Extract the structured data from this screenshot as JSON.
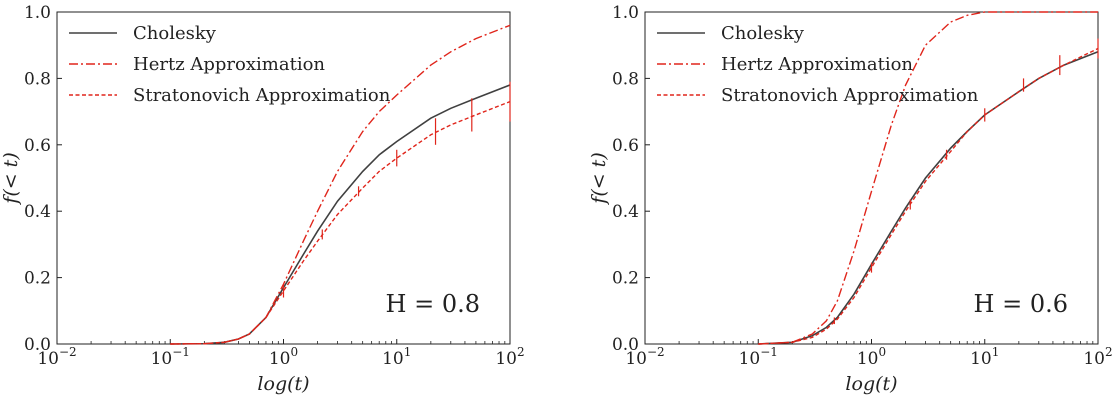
{
  "colors": {
    "cholesky": "#404040",
    "hertz": "#e0251b",
    "stratonovich": "#e0251b",
    "errorbar": "#e0251b",
    "axis": "#222222"
  },
  "chart_data": [
    {
      "type": "line",
      "xscale": "log",
      "xlim": [
        0.01,
        100
      ],
      "ylim": [
        0,
        1
      ],
      "xlabel": "log(t)",
      "ylabel": "f(< t)",
      "xticks": [
        "10^-2",
        "10^-1",
        "10^0",
        "10^1",
        "10^2"
      ],
      "yticks": [
        "0.0",
        "0.2",
        "0.4",
        "0.6",
        "0.8",
        "1.0"
      ],
      "annotation": "H = 0.8",
      "legend_position": "top-left",
      "series": [
        {
          "name": "Cholesky",
          "style": "solid",
          "x": [
            0.1,
            0.2,
            0.3,
            0.4,
            0.5,
            0.7,
            1.0,
            1.5,
            2,
            3,
            5,
            7,
            10,
            20,
            30,
            50,
            100
          ],
          "y": [
            0.0,
            0.001,
            0.005,
            0.015,
            0.03,
            0.08,
            0.17,
            0.27,
            0.34,
            0.43,
            0.52,
            0.57,
            0.61,
            0.68,
            0.71,
            0.74,
            0.78
          ]
        },
        {
          "name": "Hertz Approximation",
          "style": "dashdot",
          "x": [
            0.1,
            0.2,
            0.3,
            0.4,
            0.5,
            0.7,
            1.0,
            1.5,
            2,
            3,
            5,
            7,
            10,
            20,
            30,
            50,
            100
          ],
          "y": [
            0.0,
            0.001,
            0.005,
            0.015,
            0.03,
            0.08,
            0.18,
            0.31,
            0.4,
            0.52,
            0.64,
            0.7,
            0.75,
            0.84,
            0.88,
            0.92,
            0.96
          ]
        },
        {
          "name": "Stratonovich Approximation",
          "style": "dashed",
          "x": [
            0.1,
            0.2,
            0.3,
            0.4,
            0.5,
            0.7,
            1.0,
            1.5,
            2,
            3,
            5,
            7,
            10,
            20,
            30,
            50,
            100
          ],
          "y": [
            0.0,
            0.001,
            0.005,
            0.015,
            0.03,
            0.08,
            0.16,
            0.25,
            0.31,
            0.39,
            0.47,
            0.52,
            0.56,
            0.63,
            0.66,
            0.69,
            0.73
          ],
          "errorbars": [
            {
              "x": 1.0,
              "y": 0.16,
              "err": 0.02
            },
            {
              "x": 2.2,
              "y": 0.33,
              "err": 0.015
            },
            {
              "x": 4.6,
              "y": 0.46,
              "err": 0.015
            },
            {
              "x": 10,
              "y": 0.56,
              "err": 0.025
            },
            {
              "x": 22,
              "y": 0.64,
              "err": 0.04
            },
            {
              "x": 46,
              "y": 0.69,
              "err": 0.05
            },
            {
              "x": 100,
              "y": 0.73,
              "err": 0.06
            }
          ]
        }
      ]
    },
    {
      "type": "line",
      "xscale": "log",
      "xlim": [
        0.01,
        100
      ],
      "ylim": [
        0,
        1
      ],
      "xlabel": "log(t)",
      "ylabel": "f(< t)",
      "xticks": [
        "10^-2",
        "10^-1",
        "10^0",
        "10^1",
        "10^2"
      ],
      "yticks": [
        "0.0",
        "0.2",
        "0.4",
        "0.6",
        "0.8",
        "1.0"
      ],
      "annotation": "H = 0.6",
      "legend_position": "top-left",
      "series": [
        {
          "name": "Cholesky",
          "style": "solid",
          "x": [
            0.1,
            0.2,
            0.3,
            0.4,
            0.5,
            0.7,
            1.0,
            1.5,
            2,
            3,
            5,
            7,
            10,
            20,
            30,
            50,
            100
          ],
          "y": [
            0.0,
            0.005,
            0.025,
            0.05,
            0.08,
            0.15,
            0.24,
            0.34,
            0.41,
            0.5,
            0.59,
            0.64,
            0.69,
            0.76,
            0.8,
            0.84,
            0.88
          ]
        },
        {
          "name": "Hertz Approximation",
          "style": "dashdot",
          "x": [
            0.1,
            0.2,
            0.3,
            0.4,
            0.5,
            0.7,
            1.0,
            1.5,
            2,
            3,
            5,
            7,
            10,
            20,
            30,
            50,
            100
          ],
          "y": [
            0.0,
            0.005,
            0.03,
            0.07,
            0.13,
            0.28,
            0.46,
            0.66,
            0.78,
            0.9,
            0.97,
            0.99,
            1.0,
            1.0,
            1.0,
            1.0,
            1.0
          ]
        },
        {
          "name": "Stratonovich Approximation",
          "style": "dashed",
          "x": [
            0.1,
            0.2,
            0.3,
            0.4,
            0.5,
            0.7,
            1.0,
            1.5,
            2,
            3,
            5,
            7,
            10,
            20,
            30,
            50,
            100
          ],
          "y": [
            0.0,
            0.005,
            0.02,
            0.045,
            0.075,
            0.14,
            0.23,
            0.33,
            0.4,
            0.49,
            0.58,
            0.64,
            0.69,
            0.76,
            0.8,
            0.84,
            0.89
          ],
          "errorbars": [
            {
              "x": 0.47,
              "y": 0.07,
              "err": 0.01
            },
            {
              "x": 1.0,
              "y": 0.23,
              "err": 0.015
            },
            {
              "x": 2.2,
              "y": 0.42,
              "err": 0.015
            },
            {
              "x": 4.6,
              "y": 0.57,
              "err": 0.015
            },
            {
              "x": 10,
              "y": 0.69,
              "err": 0.02
            },
            {
              "x": 22,
              "y": 0.78,
              "err": 0.02
            },
            {
              "x": 46,
              "y": 0.84,
              "err": 0.03
            },
            {
              "x": 100,
              "y": 0.89,
              "err": 0.03
            }
          ]
        }
      ]
    }
  ]
}
